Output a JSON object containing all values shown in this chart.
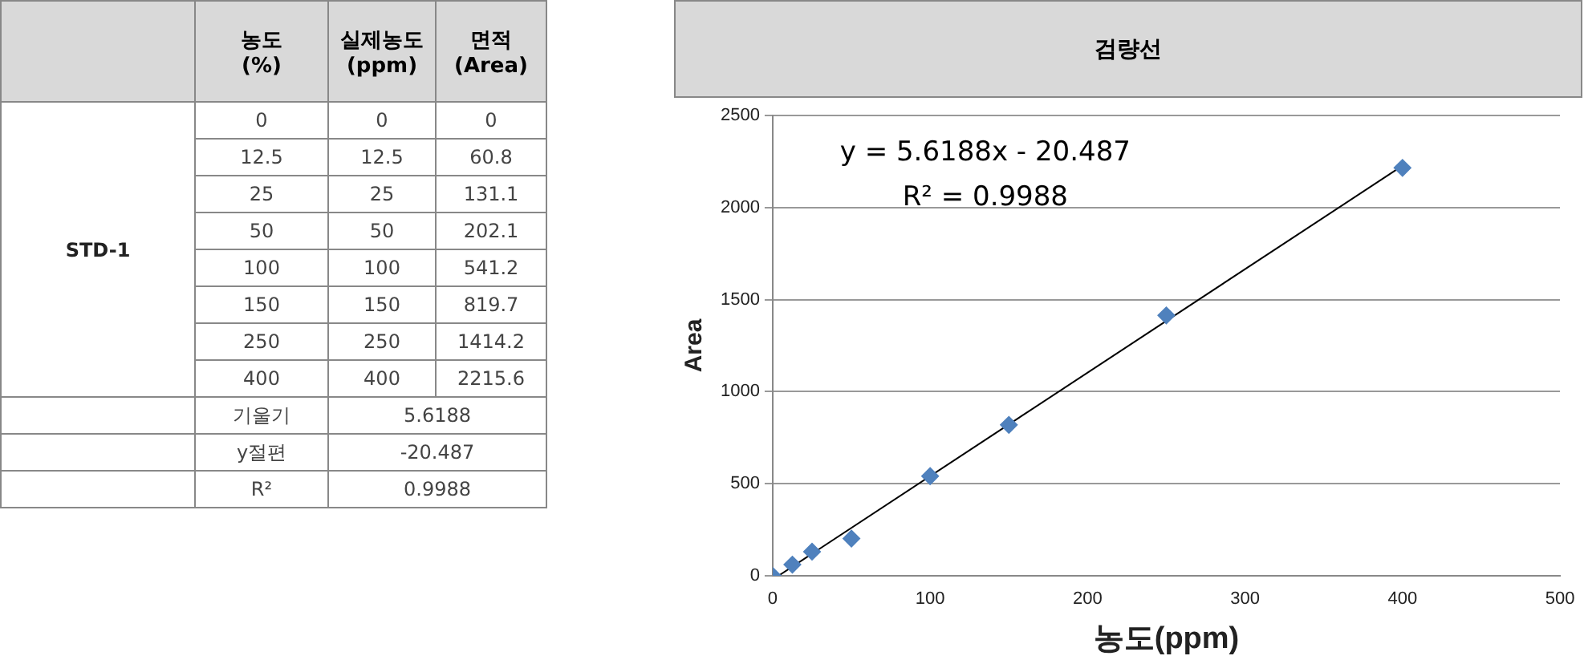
{
  "chart_data": {
    "type": "scatter",
    "title": "검량선",
    "xlabel": "농도(ppm)",
    "ylabel": "Area",
    "x": [
      0,
      12.5,
      25,
      50,
      100,
      150,
      250,
      400
    ],
    "series": [
      {
        "values": [
          0,
          60.8,
          131.1,
          202.1,
          541.2,
          819.7,
          1414.2,
          2215.6
        ],
        "color": "#4f81bd",
        "marker": "diamond"
      },
      {
        "type": "line",
        "x": [
          3.65,
          400
        ],
        "values": [
          0,
          2227
        ],
        "color": "#000000",
        "line_style": "solid",
        "marker": "none"
      }
    ],
    "xlim": [
      0,
      500
    ],
    "xticks": [
      0,
      100,
      200,
      300,
      400,
      500
    ],
    "ylim": [
      0,
      2500
    ],
    "yticks": [
      0,
      500,
      1000,
      1500,
      2000,
      2500
    ],
    "grid": "y",
    "legend": false,
    "annotations": [
      "y = 5.6188x - 20.487",
      "R² = 0.9988",
      "농도\n(%)",
      "실제농도\n(ppm)",
      "면적\n(Area)",
      "STD-1",
      "0",
      "0",
      "0",
      "12.5",
      "12.5",
      "60.8",
      "25",
      "25",
      "131.1",
      "50",
      "50",
      "202.1",
      "100",
      "100",
      "541.2",
      "150",
      "150",
      "819.7",
      "250",
      "250",
      "1414.2",
      "400",
      "400",
      "2215.6",
      "기울기",
      "5.6188",
      "y절편",
      "-20.487",
      "R²",
      "0.9988"
    ]
  }
}
